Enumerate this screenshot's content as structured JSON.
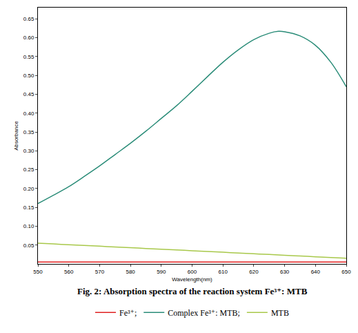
{
  "chart_data": {
    "type": "line",
    "caption": "Fig. 2: Absorption spectra of the reaction system Fe³⁺: MTB",
    "x_label": "Wavelength(nm)",
    "y_label": "Absorbance",
    "x": [
      550,
      555,
      560,
      565,
      570,
      575,
      580,
      585,
      590,
      595,
      600,
      605,
      610,
      615,
      620,
      625,
      628,
      630,
      635,
      640,
      645,
      650
    ],
    "series": [
      {
        "name": "Fe³⁺;",
        "color": "#e02020",
        "values": [
          0.005,
          0.005,
          0.005,
          0.005,
          0.005,
          0.005,
          0.005,
          0.005,
          0.005,
          0.005,
          0.005,
          0.005,
          0.005,
          0.005,
          0.005,
          0.005,
          0.005,
          0.005,
          0.005,
          0.005,
          0.005,
          0.005
        ]
      },
      {
        "name": "Complex Fe³⁺: MTB;",
        "color": "#2a8c78",
        "values": [
          0.16,
          0.182,
          0.205,
          0.232,
          0.26,
          0.29,
          0.32,
          0.352,
          0.386,
          0.42,
          0.458,
          0.497,
          0.535,
          0.568,
          0.595,
          0.612,
          0.617,
          0.616,
          0.605,
          0.58,
          0.535,
          0.47
        ]
      },
      {
        "name": "MTB",
        "color": "#a8c84a",
        "values": [
          0.055,
          0.053,
          0.051,
          0.049,
          0.047,
          0.045,
          0.043,
          0.041,
          0.039,
          0.037,
          0.035,
          0.033,
          0.031,
          0.029,
          0.027,
          0.025,
          0.0238,
          0.023,
          0.021,
          0.019,
          0.017,
          0.015
        ]
      }
    ],
    "xlim": [
      550,
      650
    ],
    "xticks": [
      550,
      560,
      570,
      580,
      590,
      600,
      610,
      620,
      630,
      640,
      650
    ],
    "ylim": [
      0,
      0.68
    ],
    "yticks": [
      0.05,
      {
        "value": 0.1,
        "label": "0.10"
      },
      0.15,
      {
        "value": 0.2,
        "label": "0.20"
      },
      0.25,
      {
        "value": 0.3,
        "label": "0.30"
      },
      0.35,
      {
        "value": 0.4,
        "label": "0.40"
      },
      0.45,
      {
        "value": 0.5,
        "label": "0.50"
      },
      0.55,
      {
        "value": 0.6,
        "label": "0.60"
      },
      0.65
    ],
    "grid": false,
    "legend": "bottom"
  }
}
